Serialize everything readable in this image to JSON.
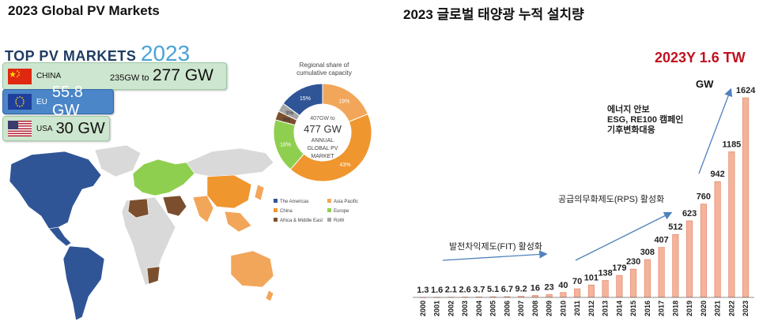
{
  "left": {
    "title": "2023 Global PV Markets",
    "heading": "TOP PV MARKETS",
    "heading_year": "2023",
    "markets": {
      "china": {
        "name": "CHINA",
        "range_small": "235GW to",
        "range_big": "277 GW",
        "flag": "china-flag"
      },
      "eu": {
        "name": "EU",
        "value": "55.8 GW",
        "flag": "eu-flag"
      },
      "usa": {
        "name": "USA",
        "value": "30 GW",
        "flag": "usa-flag"
      }
    },
    "map_colors": {
      "The Americas": "#2f5597",
      "Asia Pacific": "#f2a65a",
      "China": "#f0962f",
      "Europe": "#8fcf4f",
      "Africa & Middle East": "#7b4f2e",
      "RoW": "#d9d9d9"
    }
  },
  "donut": {
    "caption": [
      "Regional share of",
      "cumulative capacity"
    ],
    "center_small": "407GW to",
    "center_big": "477 GW",
    "center_lines": [
      "ANNUAL",
      "GLOBAL PV",
      "MARKET"
    ]
  },
  "right": {
    "title": "2023 글로벌 태양광 누적 설치량",
    "headline": "2023Y 1.6 TW",
    "unit": "GW",
    "annotations": {
      "fit": "발전차익제도(FIT) 활성화",
      "rps": "공급의무화제도(RPS) 활성화",
      "esg": [
        "에너지 안보",
        "ESG, RE100 캠페인",
        "기후변화대응"
      ]
    }
  },
  "chart_data": [
    {
      "type": "pie",
      "title": "Regional share of cumulative capacity",
      "categories": [
        "The Americas",
        "Asia Pacific",
        "China",
        "Europe",
        "Africa & Middle East",
        "RoW"
      ],
      "values": [
        15,
        19,
        43,
        18,
        3,
        3
      ],
      "labels": [
        "15%",
        "19%",
        "43%",
        "18%",
        "3%",
        "3%"
      ],
      "colors": [
        "#2f5597",
        "#f2a65a",
        "#f0962f",
        "#8fcf4f",
        "#7b4f2e",
        "#a6a6a6"
      ],
      "legend": [
        "The Americas",
        "Asia Pacific",
        "China",
        "Europe",
        "Africa & Middle East",
        "RoW"
      ],
      "legend_placement": "bottom"
    },
    {
      "type": "bar",
      "title": "2023 글로벌 태양광 누적 설치량",
      "ylabel": "GW",
      "categories": [
        "2000",
        "2001",
        "2002",
        "2003",
        "2004",
        "2005",
        "2006",
        "2007",
        "2008",
        "2009",
        "2010",
        "2011",
        "2012",
        "2013",
        "2014",
        "2015",
        "2016",
        "2017",
        "2018",
        "2019",
        "2020",
        "2021",
        "2022",
        "2023"
      ],
      "values": [
        1.3,
        1.6,
        2.1,
        2.6,
        3.7,
        5.1,
        6.7,
        9.2,
        16,
        23,
        40,
        70,
        101,
        138,
        179,
        230,
        308,
        407,
        512,
        623,
        760,
        942,
        1185,
        1624
      ],
      "labels": [
        "1.3",
        "1.6",
        "2.1",
        "2.6",
        "3.7",
        "5.1",
        "6.7",
        "9.2",
        "16",
        "23",
        "40",
        "70",
        "101",
        "138",
        "179",
        "230",
        "308",
        "407",
        "512",
        "623",
        "760",
        "942",
        "1185",
        "1624"
      ],
      "ylim": [
        0,
        1624
      ],
      "bar_color": "#f4b39a",
      "bar_edge": "#e07d5e",
      "grid": false
    }
  ]
}
